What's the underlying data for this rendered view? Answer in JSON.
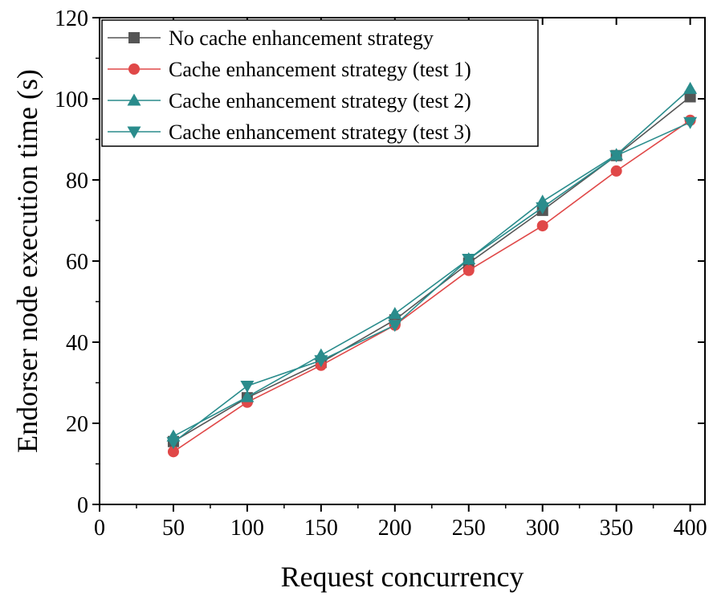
{
  "chart_data": {
    "type": "line",
    "title": "",
    "xlabel": "Request concurrency",
    "ylabel": "Endorser node execution time (s)",
    "xlim": [
      0,
      410
    ],
    "ylim": [
      0,
      120
    ],
    "xticks": [
      0,
      50,
      100,
      150,
      200,
      250,
      300,
      350,
      400
    ],
    "yticks": [
      0,
      20,
      40,
      60,
      80,
      100,
      120
    ],
    "x_minor_step": 25,
    "y_minor_step": 10,
    "grid": false,
    "legend_position": "top-left",
    "x": [
      50,
      100,
      150,
      200,
      250,
      300,
      350,
      400
    ],
    "series": [
      {
        "name": "No cache enhancement strategy",
        "values": [
          15.5,
          26.3,
          35.0,
          45.5,
          59.5,
          72.5,
          86.0,
          100.5
        ],
        "color": "#555555",
        "marker": "square"
      },
      {
        "name": "Cache enhancement strategy (test 1)",
        "values": [
          13.0,
          25.2,
          34.3,
          44.2,
          57.7,
          68.7,
          82.2,
          94.7
        ],
        "color": "#e04848",
        "marker": "circle"
      },
      {
        "name": "Cache enhancement strategy (test 2)",
        "values": [
          16.8,
          26.5,
          36.8,
          47.0,
          60.5,
          74.7,
          86.2,
          102.5
        ],
        "color": "#2a8c8c",
        "marker": "triangle-up"
      },
      {
        "name": "Cache enhancement strategy (test 3)",
        "values": [
          15.3,
          29.2,
          35.5,
          44.2,
          60.5,
          73.2,
          86.0,
          94.2
        ],
        "color": "#2a8c8c",
        "marker": "triangle-down"
      }
    ]
  }
}
